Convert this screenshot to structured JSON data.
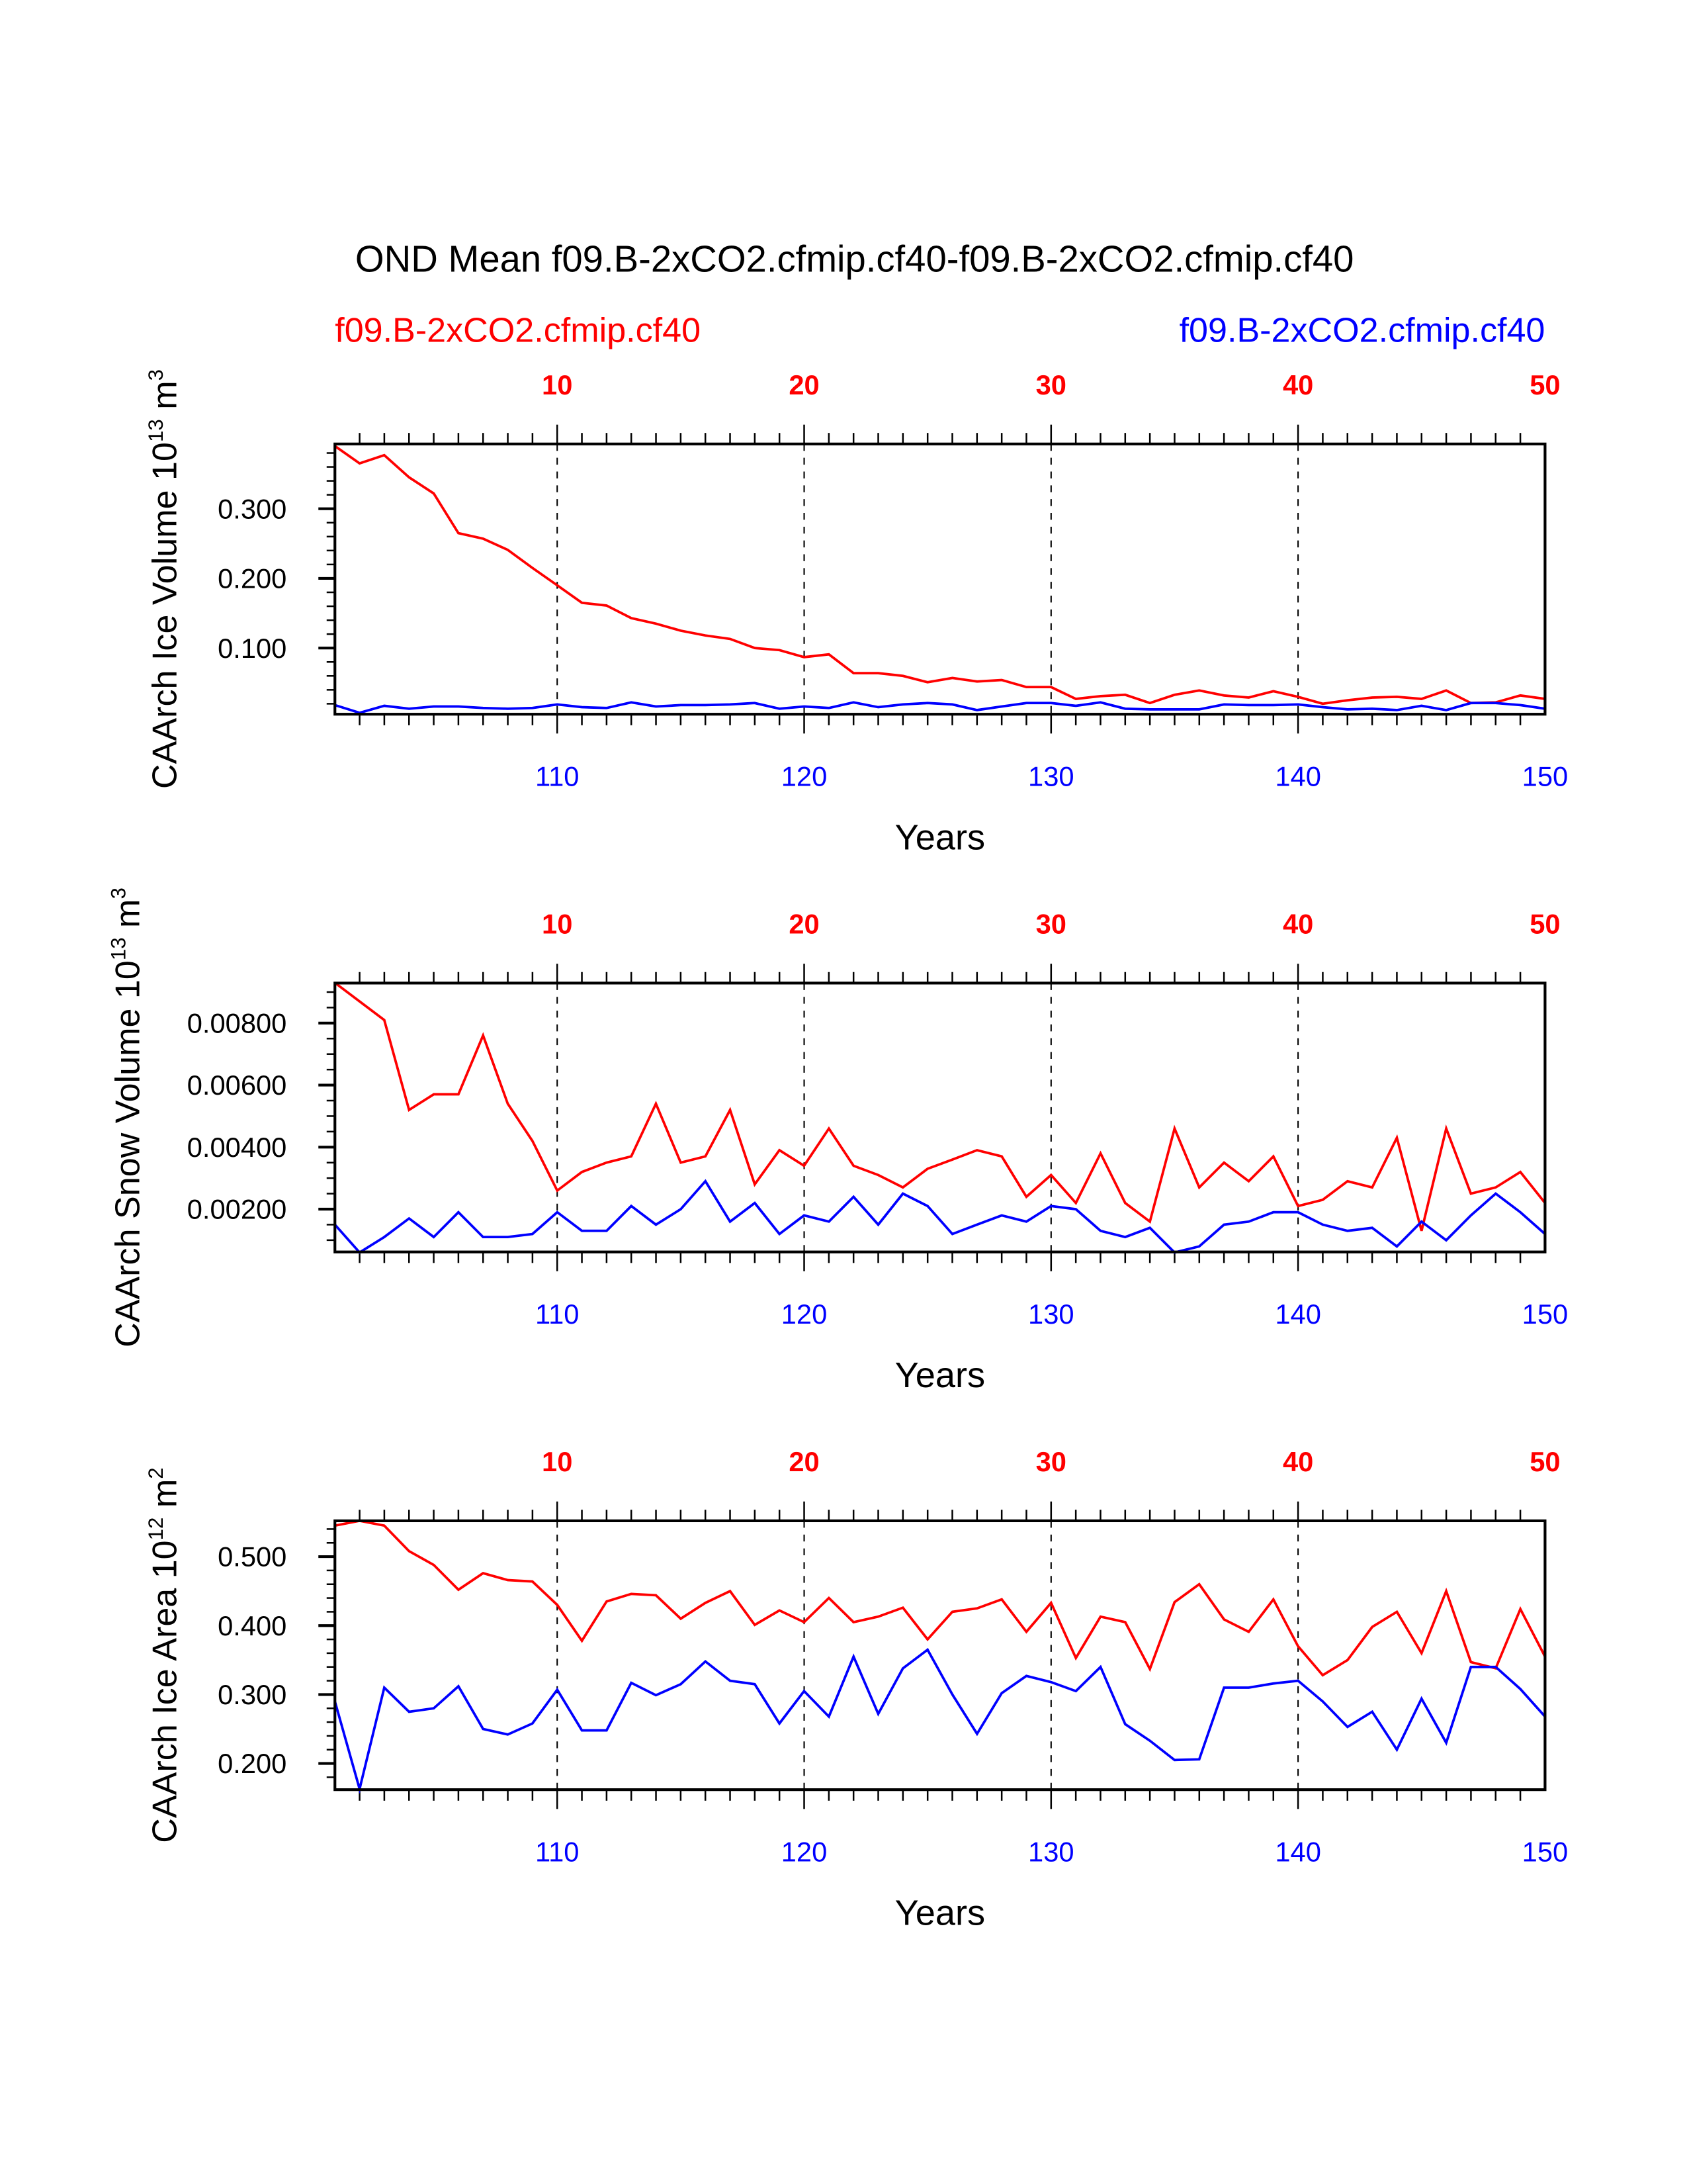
{
  "title": "OND Mean f09.B-2xCO2.cfmip.cf40-f09.B-2xCO2.cfmip.cf40",
  "subtitle_left": "f09.B-2xCO2.cfmip.cf40",
  "subtitle_right": "f09.B-2xCO2.cfmip.cf40",
  "colors": {
    "red_series": "#ff0000",
    "blue_series": "#0000ff",
    "top_axis": "#ff0000",
    "bottom_axis": "#0000ff"
  },
  "chart_data": [
    {
      "type": "line",
      "ylabel": "CAArch Ice Volume",
      "ylabel_exp": "10",
      "ylabel_exp_sup": "13",
      "ylabel_unit": "m",
      "ylabel_unit_sup": "3",
      "xlabel": "Years",
      "ylim": [
        0.005,
        0.393
      ],
      "yticks": [
        0.1,
        0.2,
        0.3
      ],
      "ytick_labels": [
        "0.100",
        "0.200",
        "0.300"
      ],
      "yminor": 0.02,
      "x": [
        101,
        102,
        103,
        104,
        105,
        106,
        107,
        108,
        109,
        110,
        111,
        112,
        113,
        114,
        115,
        116,
        117,
        118,
        119,
        120,
        121,
        122,
        123,
        124,
        125,
        126,
        127,
        128,
        129,
        130,
        131,
        132,
        133,
        134,
        135,
        136,
        137,
        138,
        139,
        140,
        141,
        142,
        143,
        144,
        145,
        146,
        147,
        148,
        149,
        150
      ],
      "xlim": [
        101,
        150
      ],
      "top_ticks": [
        "10",
        "20",
        "30",
        "40",
        "50"
      ],
      "bottom_ticks": [
        "110",
        "120",
        "130",
        "140",
        "150"
      ],
      "grid": "dashed vertical at decades",
      "series": [
        {
          "name": "f09.B-2xCO2.cfmip.cf40 (red)",
          "color": "#ff0000",
          "values": [
            0.39,
            0.365,
            0.377,
            0.345,
            0.322,
            0.265,
            0.257,
            0.241,
            0.215,
            0.19,
            0.165,
            0.161,
            0.143,
            0.135,
            0.125,
            0.118,
            0.113,
            0.1,
            0.097,
            0.087,
            0.091,
            0.064,
            0.064,
            0.06,
            0.051,
            0.057,
            0.052,
            0.054,
            0.044,
            0.044,
            0.027,
            0.031,
            0.033,
            0.021,
            0.033,
            0.039,
            0.032,
            0.029,
            0.038,
            0.03,
            0.02,
            0.025,
            0.029,
            0.03,
            0.027,
            0.039,
            0.021,
            0.022,
            0.032,
            0.027
          ]
        },
        {
          "name": "f09.B-2xCO2.cfmip.cf40 (blue)",
          "color": "#0000ff",
          "values": [
            0.018,
            0.007,
            0.017,
            0.013,
            0.016,
            0.016,
            0.014,
            0.013,
            0.014,
            0.019,
            0.015,
            0.014,
            0.022,
            0.016,
            0.018,
            0.018,
            0.019,
            0.021,
            0.013,
            0.016,
            0.014,
            0.022,
            0.015,
            0.019,
            0.021,
            0.019,
            0.011,
            0.016,
            0.021,
            0.021,
            0.017,
            0.022,
            0.013,
            0.012,
            0.012,
            0.012,
            0.019,
            0.018,
            0.018,
            0.019,
            0.015,
            0.012,
            0.013,
            0.011,
            0.017,
            0.011,
            0.021,
            0.021,
            0.018,
            0.013
          ]
        }
      ]
    },
    {
      "type": "line",
      "ylabel": "CAArch Snow Volume",
      "ylabel_exp": "10",
      "ylabel_exp_sup": "13",
      "ylabel_unit": "m",
      "ylabel_unit_sup": "3",
      "xlabel": "Years",
      "ylim": [
        0.00062,
        0.00929
      ],
      "yticks": [
        0.002,
        0.004,
        0.006,
        0.008
      ],
      "ytick_labels": [
        "0.00200",
        "0.00400",
        "0.00600",
        "0.00800"
      ],
      "yminor": 0.0005,
      "x": [
        101,
        102,
        103,
        104,
        105,
        106,
        107,
        108,
        109,
        110,
        111,
        112,
        113,
        114,
        115,
        116,
        117,
        118,
        119,
        120,
        121,
        122,
        123,
        124,
        125,
        126,
        127,
        128,
        129,
        130,
        131,
        132,
        133,
        134,
        135,
        136,
        137,
        138,
        139,
        140,
        141,
        142,
        143,
        144,
        145,
        146,
        147,
        148,
        149,
        150
      ],
      "xlim": [
        101,
        150
      ],
      "top_ticks": [
        "10",
        "20",
        "30",
        "40",
        "50"
      ],
      "bottom_ticks": [
        "110",
        "120",
        "130",
        "140",
        "150"
      ],
      "grid": "dashed vertical at decades",
      "series": [
        {
          "name": "f09.B-2xCO2.cfmip.cf40 (red)",
          "color": "#ff0000",
          "values": [
            0.0093,
            0.0087,
            0.0081,
            0.0052,
            0.0057,
            0.0057,
            0.0076,
            0.0054,
            0.0042,
            0.0026,
            0.0032,
            0.0035,
            0.0037,
            0.0054,
            0.0035,
            0.0037,
            0.0052,
            0.0028,
            0.0039,
            0.0034,
            0.0046,
            0.0034,
            0.0031,
            0.0027,
            0.0033,
            0.0036,
            0.0039,
            0.0037,
            0.0024,
            0.0031,
            0.0022,
            0.0038,
            0.0022,
            0.0016,
            0.0046,
            0.0027,
            0.0035,
            0.0029,
            0.0037,
            0.0021,
            0.0023,
            0.0029,
            0.0027,
            0.0043,
            0.0013,
            0.0046,
            0.0025,
            0.0027,
            0.0032,
            0.0022
          ]
        },
        {
          "name": "f09.B-2xCO2.cfmip.cf40 (blue)",
          "color": "#0000ff",
          "values": [
            0.0015,
            0.0006,
            0.0011,
            0.0017,
            0.0011,
            0.0019,
            0.0011,
            0.0011,
            0.0012,
            0.0019,
            0.0013,
            0.0013,
            0.0021,
            0.0015,
            0.002,
            0.0029,
            0.0016,
            0.0022,
            0.0012,
            0.0018,
            0.0016,
            0.0024,
            0.0015,
            0.0025,
            0.0021,
            0.0012,
            0.0015,
            0.0018,
            0.0016,
            0.0021,
            0.002,
            0.0013,
            0.0011,
            0.0014,
            0.0006,
            0.0008,
            0.0015,
            0.0016,
            0.0019,
            0.0019,
            0.0015,
            0.0013,
            0.0014,
            0.0008,
            0.0016,
            0.001,
            0.0018,
            0.0025,
            0.0019,
            0.0012
          ]
        }
      ]
    },
    {
      "type": "line",
      "ylabel": "CAArch Ice Area",
      "ylabel_exp": "10",
      "ylabel_exp_sup": "12",
      "ylabel_unit": "m",
      "ylabel_unit_sup": "2",
      "xlabel": "Years",
      "ylim": [
        0.162,
        0.552
      ],
      "yticks": [
        0.2,
        0.3,
        0.4,
        0.5
      ],
      "ytick_labels": [
        "0.200",
        "0.300",
        "0.400",
        "0.500"
      ],
      "yminor": 0.02,
      "x": [
        101,
        102,
        103,
        104,
        105,
        106,
        107,
        108,
        109,
        110,
        111,
        112,
        113,
        114,
        115,
        116,
        117,
        118,
        119,
        120,
        121,
        122,
        123,
        124,
        125,
        126,
        127,
        128,
        129,
        130,
        131,
        132,
        133,
        134,
        135,
        136,
        137,
        138,
        139,
        140,
        141,
        142,
        143,
        144,
        145,
        146,
        147,
        148,
        149,
        150
      ],
      "xlim": [
        101,
        150
      ],
      "top_ticks": [
        "10",
        "20",
        "30",
        "40",
        "50"
      ],
      "bottom_ticks": [
        "110",
        "120",
        "130",
        "140",
        "150"
      ],
      "grid": "dashed vertical at decades",
      "series": [
        {
          "name": "f09.B-2xCO2.cfmip.cf40 (red)",
          "color": "#ff0000",
          "values": [
            0.545,
            0.552,
            0.545,
            0.508,
            0.488,
            0.452,
            0.476,
            0.466,
            0.464,
            0.43,
            0.378,
            0.435,
            0.446,
            0.444,
            0.41,
            0.433,
            0.45,
            0.401,
            0.422,
            0.405,
            0.44,
            0.405,
            0.413,
            0.426,
            0.38,
            0.42,
            0.425,
            0.438,
            0.391,
            0.433,
            0.353,
            0.413,
            0.405,
            0.337,
            0.434,
            0.46,
            0.409,
            0.391,
            0.438,
            0.37,
            0.328,
            0.35,
            0.398,
            0.42,
            0.36,
            0.45,
            0.347,
            0.338,
            0.424,
            0.355
          ]
        },
        {
          "name": "f09.B-2xCO2.cfmip.cf40 (blue)",
          "color": "#0000ff",
          "values": [
            0.29,
            0.163,
            0.31,
            0.275,
            0.28,
            0.312,
            0.25,
            0.242,
            0.258,
            0.307,
            0.248,
            0.248,
            0.317,
            0.299,
            0.315,
            0.348,
            0.32,
            0.315,
            0.258,
            0.305,
            0.268,
            0.355,
            0.272,
            0.338,
            0.365,
            0.3,
            0.243,
            0.302,
            0.327,
            0.318,
            0.305,
            0.34,
            0.257,
            0.233,
            0.205,
            0.206,
            0.31,
            0.31,
            0.316,
            0.32,
            0.29,
            0.253,
            0.275,
            0.22,
            0.294,
            0.23,
            0.34,
            0.34,
            0.308,
            0.268
          ]
        }
      ]
    }
  ]
}
